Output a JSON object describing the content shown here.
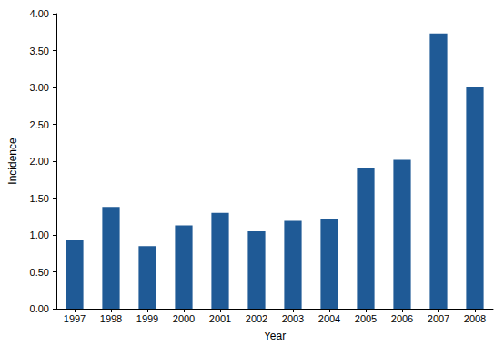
{
  "chart_data": {
    "type": "bar",
    "x_label": "Year",
    "y_label": "Incidence",
    "categories": [
      "1997",
      "1998",
      "1999",
      "2000",
      "2001",
      "2002",
      "2003",
      "2004",
      "2005",
      "2006",
      "2007",
      "2008"
    ],
    "values": [
      0.93,
      1.38,
      0.85,
      1.13,
      1.3,
      1.05,
      1.19,
      1.21,
      1.91,
      2.02,
      3.73,
      3.01
    ],
    "color": "#1f5a96",
    "ylim": [
      0,
      4
    ],
    "yticks": [
      {
        "value": 0,
        "label": "0.00"
      },
      {
        "value": 0.5,
        "label": "0.50"
      },
      {
        "value": 1,
        "label": "1.00"
      },
      {
        "value": 1.5,
        "label": "1.50"
      },
      {
        "value": 2,
        "label": "2.00"
      },
      {
        "value": 2.5,
        "label": "2.50"
      },
      {
        "value": 3,
        "label": "3.00"
      },
      {
        "value": 3.5,
        "label": "3.50"
      },
      {
        "value": 4,
        "label": "4.00"
      }
    ],
    "grid": false
  }
}
